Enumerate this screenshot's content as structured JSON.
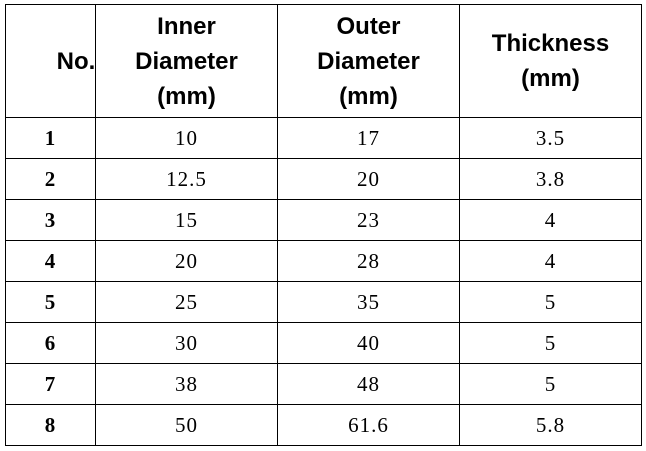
{
  "table": {
    "header": [
      "No.",
      "Inner Diameter (mm)",
      "Outer Diameter (mm)",
      "Thickness (mm)"
    ],
    "rows": [
      [
        "1",
        "10",
        "17",
        "3.5"
      ],
      [
        "2",
        "12.5",
        "20",
        "3.8"
      ],
      [
        "3",
        "15",
        "23",
        "4"
      ],
      [
        "4",
        "20",
        "28",
        "4"
      ],
      [
        "5",
        "25",
        "35",
        "5"
      ],
      [
        "6",
        "30",
        "40",
        "5"
      ],
      [
        "7",
        "38",
        "48",
        "5"
      ],
      [
        "8",
        "50",
        "61.6",
        "5.8"
      ]
    ]
  }
}
